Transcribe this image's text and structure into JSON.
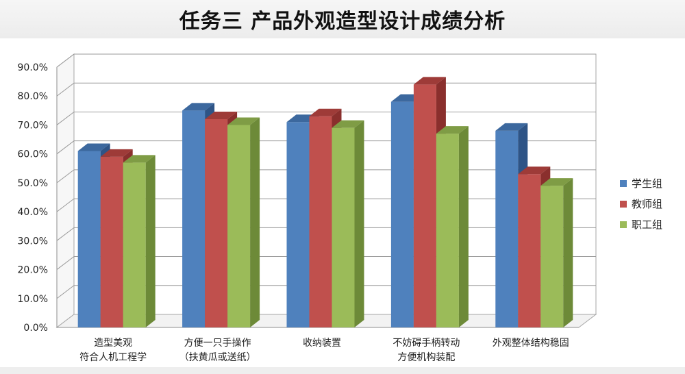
{
  "page": {
    "title": "任务三  产品外观造型设计成绩分析"
  },
  "chart_data": {
    "type": "bar",
    "title": "",
    "xlabel": "",
    "ylabel": "",
    "ylim": [
      0,
      90
    ],
    "yticks": [
      "0.0%",
      "10.0%",
      "20.0%",
      "30.0%",
      "40.0%",
      "50.0%",
      "60.0%",
      "70.0%",
      "80.0%",
      "90.0%"
    ],
    "grid": true,
    "legend_position": "right",
    "categories": [
      [
        "造型美观",
        "符合人机工程学"
      ],
      [
        "方便一只手操作",
        "（扶黄瓜或送纸）"
      ],
      [
        "收纳装置"
      ],
      [
        "不妨碍手柄转动",
        "方便机构装配"
      ],
      [
        "外观整体结构稳固"
      ]
    ],
    "series": [
      {
        "name": "学生组",
        "color": "#4f81bd",
        "top": "#3c689e",
        "side": "#2e5486",
        "values": [
          61,
          75,
          71,
          78,
          68
        ]
      },
      {
        "name": "教师组",
        "color": "#c0504d",
        "top": "#9e3b38",
        "side": "#8a2f2d",
        "values": [
          59,
          72,
          73,
          84,
          53
        ]
      },
      {
        "name": "职工组",
        "color": "#9bbb59",
        "top": "#7f9c45",
        "side": "#6d8a38",
        "values": [
          57,
          70,
          69,
          67,
          49
        ]
      }
    ]
  }
}
